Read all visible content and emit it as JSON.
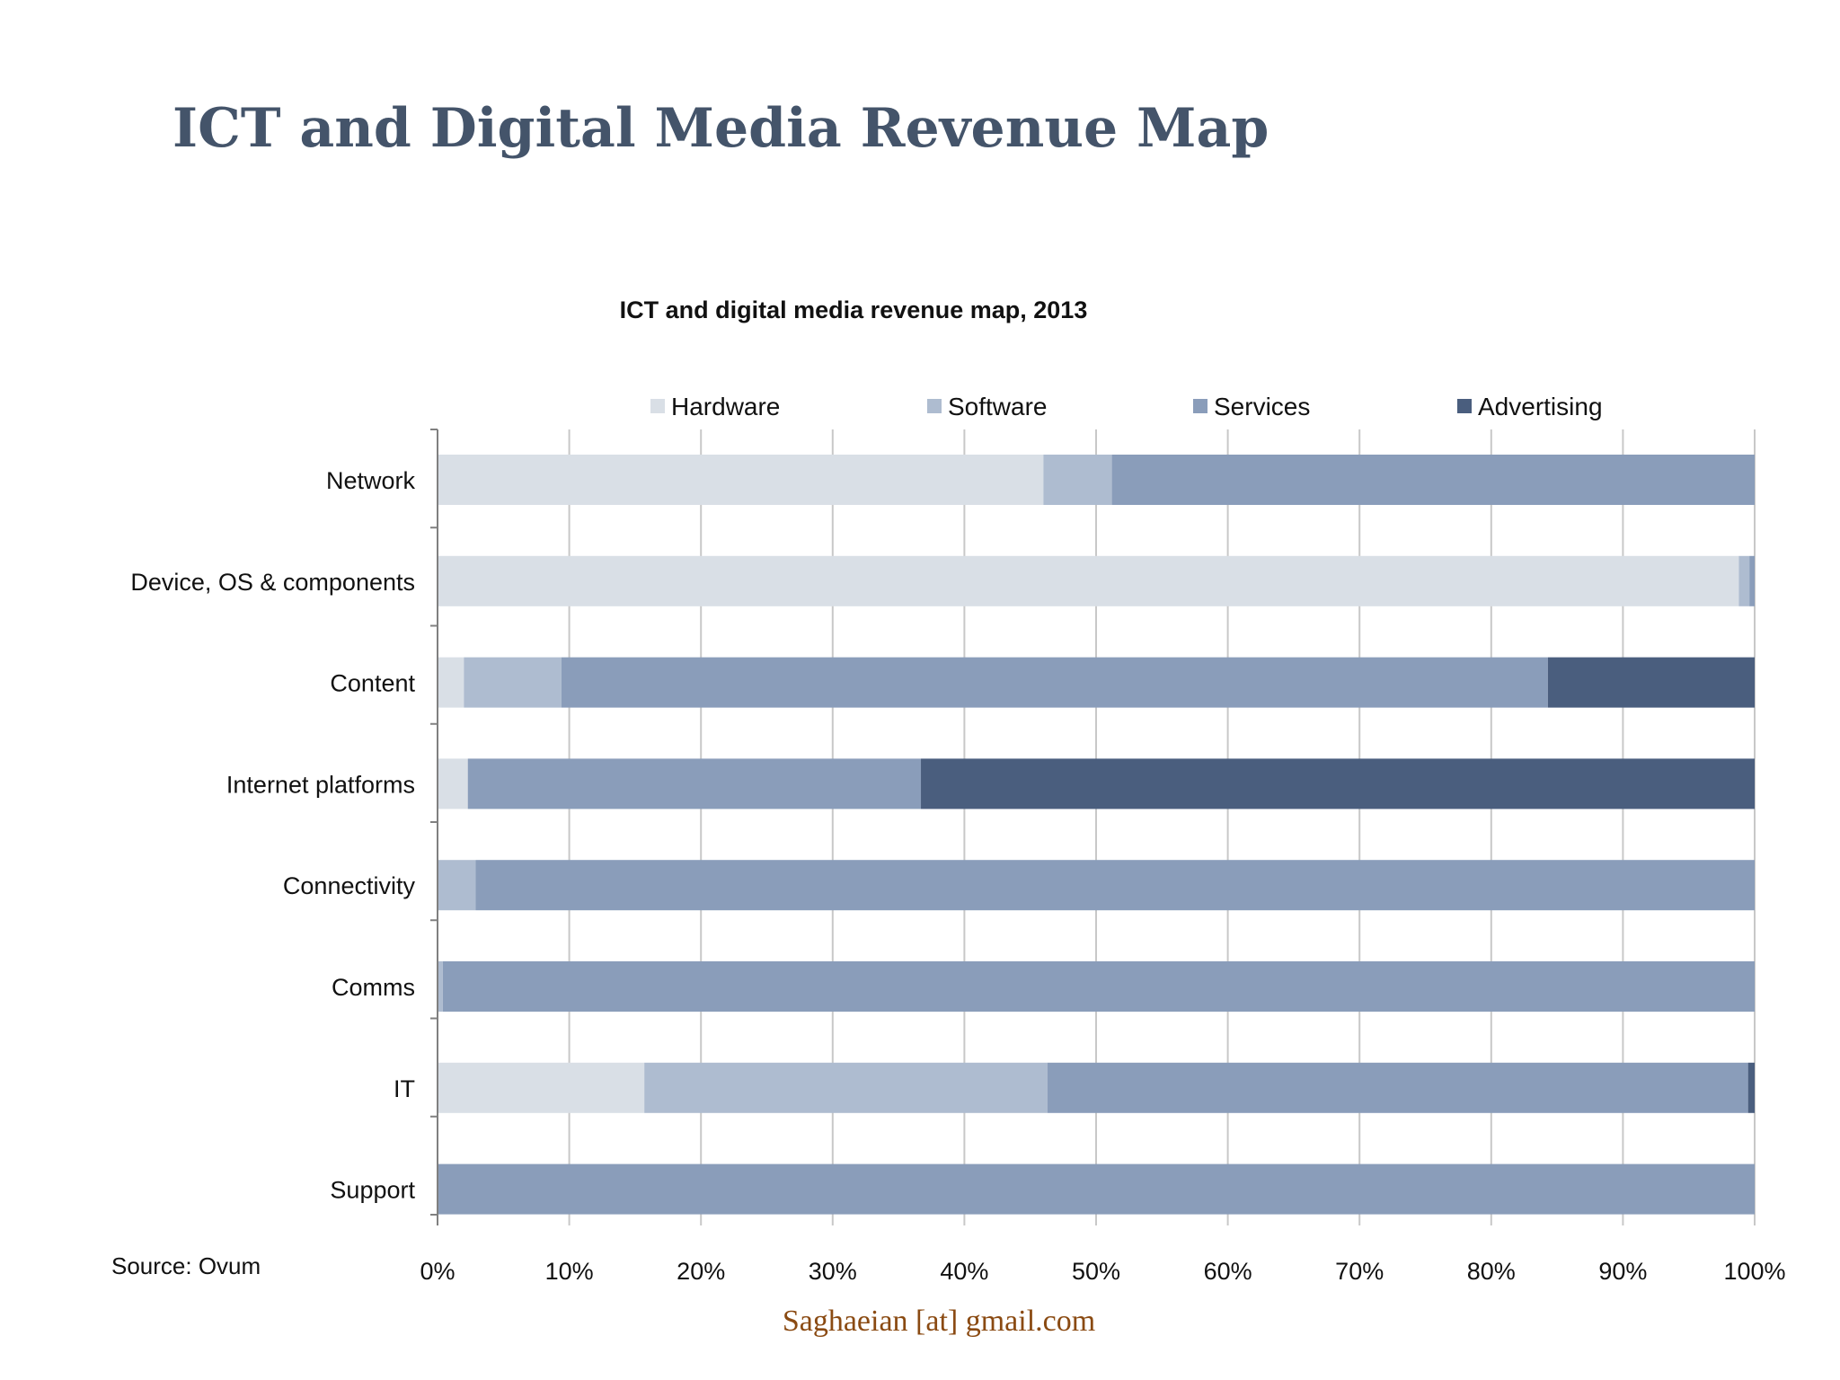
{
  "slide": {
    "title": "ICT and Digital Media Revenue Map",
    "footer": "Saghaeian [at] gmail.com"
  },
  "chart_data": {
    "type": "bar",
    "orientation": "horizontal",
    "stacked": true,
    "stack_mode": "percent",
    "title": "ICT and digital media revenue map, 2013",
    "source": "Source: Ovum",
    "categories": [
      "Network",
      "Device, OS & components",
      "Content",
      "Internet platforms",
      "Connectivity",
      "Comms",
      "IT",
      "Support"
    ],
    "series": [
      {
        "name": "Hardware",
        "color": "#d9dfe6",
        "values": [
          46,
          98.8,
          2,
          2.3,
          0,
          0,
          15.7,
          0
        ]
      },
      {
        "name": "Software",
        "color": "#aebcd0",
        "values": [
          5.2,
          0.8,
          7.4,
          0,
          2.9,
          0.4,
          30.6,
          0
        ]
      },
      {
        "name": "Services",
        "color": "#8a9dba",
        "values": [
          48.8,
          0.4,
          74.9,
          34.4,
          97.1,
          99.6,
          53.2,
          100
        ]
      },
      {
        "name": "Advertising",
        "color": "#4a5e7e",
        "values": [
          0,
          0,
          15.7,
          63.3,
          0,
          0,
          0.5,
          0
        ]
      }
    ],
    "x_ticks": [
      "0%",
      "10%",
      "20%",
      "30%",
      "40%",
      "50%",
      "60%",
      "70%",
      "80%",
      "90%",
      "100%"
    ],
    "xlim": [
      0,
      100
    ],
    "grid": true,
    "legend_position": "top"
  }
}
